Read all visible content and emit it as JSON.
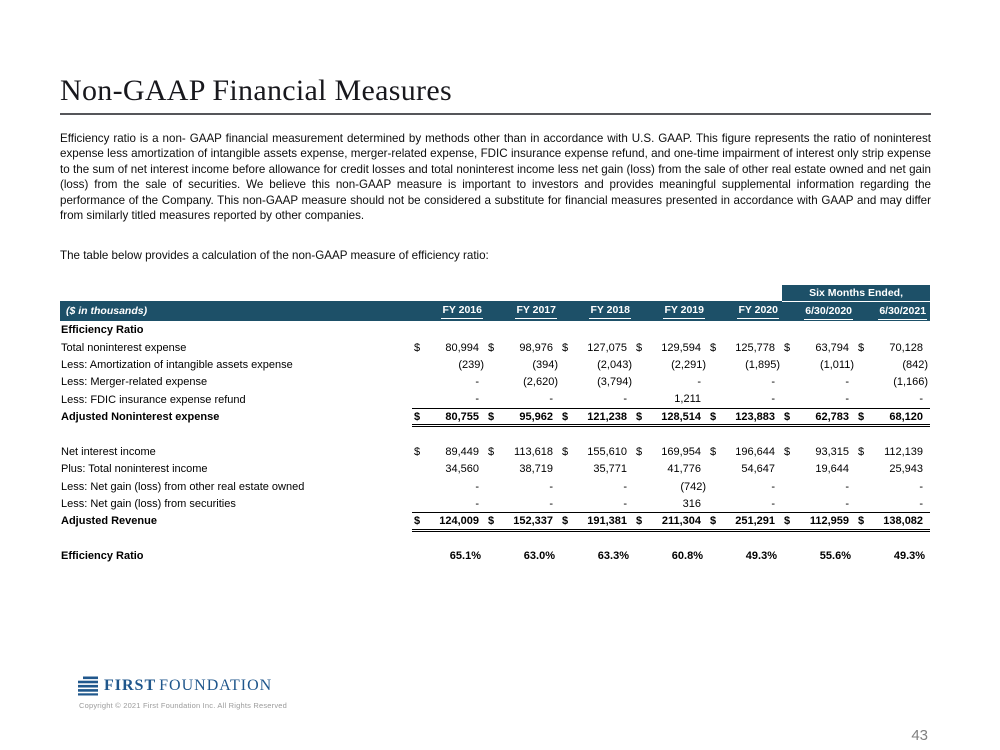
{
  "page": {
    "title": "Non-GAAP Financial Measures",
    "page_number": "43"
  },
  "intro": {
    "paragraph": "Efficiency ratio is a non- GAAP financial measurement determined by methods other than in accordance with U.S. GAAP.  This figure represents the ratio of noninterest expense less amortization of intangible assets expense, merger-related expense, FDIC insurance expense refund, and one-time impairment of interest only strip expense to the sum of net interest income before allowance for credit losses and total noninterest income less net gain (loss) from the sale of other real estate owned and net gain (loss) from the sale of securities. We believe this non-GAAP measure is important to investors and  provides meaningful supplemental information regarding the performance of the Company.  This non-GAAP measure should not be considered a substitute for financial measures presented in accordance with GAAP and may differ from similarly titled measures reported by other companies.",
    "table_intro": "The table below provides a calculation of the non-GAAP measure of efficiency ratio:"
  },
  "table": {
    "header_bg": "#1d5068",
    "span_header": {
      "label": "Six Months Ended,",
      "columns": 2
    },
    "row_label_header": "($ in thousands)",
    "columns": [
      "FY 2016",
      "FY 2017",
      "FY 2018",
      "FY 2019",
      "FY 2020",
      "6/30/2020",
      "6/30/2021"
    ],
    "rows": [
      {
        "label": "Efficiency Ratio",
        "type": "section",
        "dollar": false,
        "values": []
      },
      {
        "label": "Total noninterest expense",
        "type": "normal",
        "dollar": true,
        "values": [
          "80,994",
          "98,976",
          "127,075",
          "129,594",
          "125,778",
          "63,794",
          "70,128"
        ]
      },
      {
        "label": "Less: Amortization of intangible assets expense",
        "type": "normal",
        "dollar": false,
        "values": [
          "(239)",
          "(394)",
          "(2,043)",
          "(2,291)",
          "(1,895)",
          "(1,011)",
          "(842)"
        ]
      },
      {
        "label": "Less: Merger-related expense",
        "type": "normal",
        "dollar": false,
        "values": [
          "-",
          "(2,620)",
          "(3,794)",
          "-",
          "-",
          "-",
          "(1,166)"
        ]
      },
      {
        "label": "Less: FDIC insurance expense refund",
        "type": "normal",
        "dollar": false,
        "values": [
          "-",
          "-",
          "-",
          "1,211",
          "-",
          "-",
          "-"
        ]
      },
      {
        "label": "Adjusted Noninterest expense",
        "type": "total",
        "dollar": true,
        "values": [
          "80,755",
          "95,962",
          "121,238",
          "128,514",
          "123,883",
          "62,783",
          "68,120"
        ]
      },
      {
        "label": "",
        "type": "blank",
        "dollar": false,
        "values": []
      },
      {
        "label": "Net interest income",
        "type": "normal",
        "dollar": true,
        "values": [
          "89,449",
          "113,618",
          "155,610",
          "169,954",
          "196,644",
          "93,315",
          "112,139"
        ]
      },
      {
        "label": "Plus: Total noninterest income",
        "type": "normal",
        "dollar": false,
        "values": [
          "34,560",
          "38,719",
          "35,771",
          "41,776",
          "54,647",
          "19,644",
          "25,943"
        ]
      },
      {
        "label": "Less: Net gain (loss) from other real estate owned",
        "type": "normal",
        "dollar": false,
        "values": [
          "-",
          "-",
          "-",
          "(742)",
          "-",
          "-",
          "-"
        ]
      },
      {
        "label": "Less: Net gain (loss) from securities",
        "type": "normal",
        "dollar": false,
        "values": [
          "-",
          "-",
          "-",
          "316",
          "-",
          "-",
          "-"
        ]
      },
      {
        "label": "Adjusted Revenue",
        "type": "total",
        "dollar": true,
        "values": [
          "124,009",
          "152,337",
          "191,381",
          "211,304",
          "251,291",
          "112,959",
          "138,082"
        ]
      },
      {
        "label": "",
        "type": "blank",
        "dollar": false,
        "values": []
      },
      {
        "label": "Efficiency Ratio",
        "type": "ratio",
        "dollar": false,
        "values": [
          "65.1%",
          "63.0%",
          "63.3%",
          "60.8%",
          "49.3%",
          "55.6%",
          "49.3%"
        ]
      }
    ]
  },
  "footer": {
    "logo_color": "#20578c",
    "logo_first": "FIRST",
    "logo_foundation": "FOUNDATION",
    "copyright": "Copyright © 2021 First Foundation Inc. All Rights Reserved"
  }
}
